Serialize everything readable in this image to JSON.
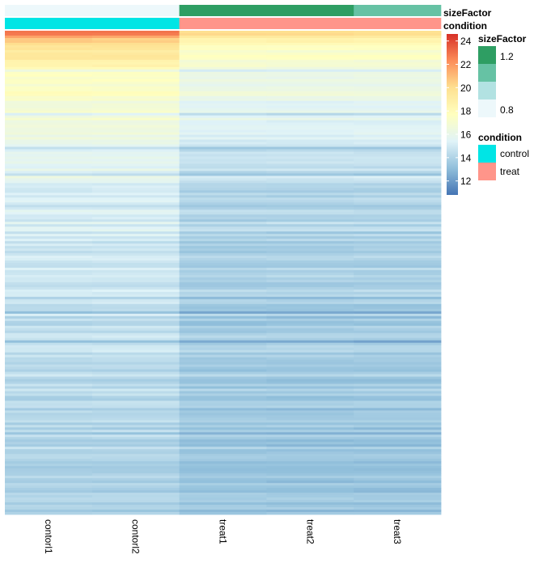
{
  "chart_data": {
    "type": "heatmap",
    "columns": [
      "contorl1",
      "contorl2",
      "treat1",
      "treat2",
      "treat3"
    ],
    "annotation_rows": [
      "sizeFactor",
      "condition"
    ],
    "annotations": {
      "sizeFactor": [
        0.85,
        0.8,
        1.25,
        1.25,
        1.15
      ],
      "condition": [
        "control",
        "control",
        "treat",
        "treat",
        "treat"
      ]
    },
    "color_scale": {
      "title": "",
      "ticks": [
        24,
        22,
        20,
        18,
        16,
        14,
        12
      ],
      "min": 10.8,
      "max": 24.6,
      "stops": [
        "#4575B4",
        "#91BFDB",
        "#E0F3F8",
        "#FFFFBF",
        "#FEE090",
        "#FC8D59",
        "#D73027"
      ]
    },
    "legend_sizeFactor": {
      "title": "sizeFactor",
      "ticks": [
        1.2,
        0.8
      ],
      "colors": [
        "#2E9E63",
        "#66C2A4",
        "#B2E2E2",
        "#EDF8FB"
      ]
    },
    "legend_condition": {
      "title": "condition",
      "entries": [
        {
          "label": "control",
          "color": "#00E5E5"
        },
        {
          "label": "treat",
          "color": "#FF958A"
        }
      ]
    },
    "condition_colors": {
      "control": "#00E5E5",
      "treat": "#FF958A"
    },
    "rows": 200,
    "row_profile": [
      {
        "row": 0,
        "control": 23.0,
        "treat": 20.0
      },
      {
        "row": 3,
        "control": 21.0,
        "treat": 19.0
      },
      {
        "row": 8,
        "control": 19.5,
        "treat": 17.5
      },
      {
        "row": 20,
        "control": 17.6,
        "treat": 16.4
      },
      {
        "row": 40,
        "control": 16.4,
        "treat": 15.4
      },
      {
        "row": 70,
        "control": 15.3,
        "treat": 14.2
      },
      {
        "row": 110,
        "control": 14.7,
        "treat": 13.8
      },
      {
        "row": 150,
        "control": 14.3,
        "treat": 13.6
      },
      {
        "row": 199,
        "control": 13.9,
        "treat": 13.4
      }
    ]
  }
}
